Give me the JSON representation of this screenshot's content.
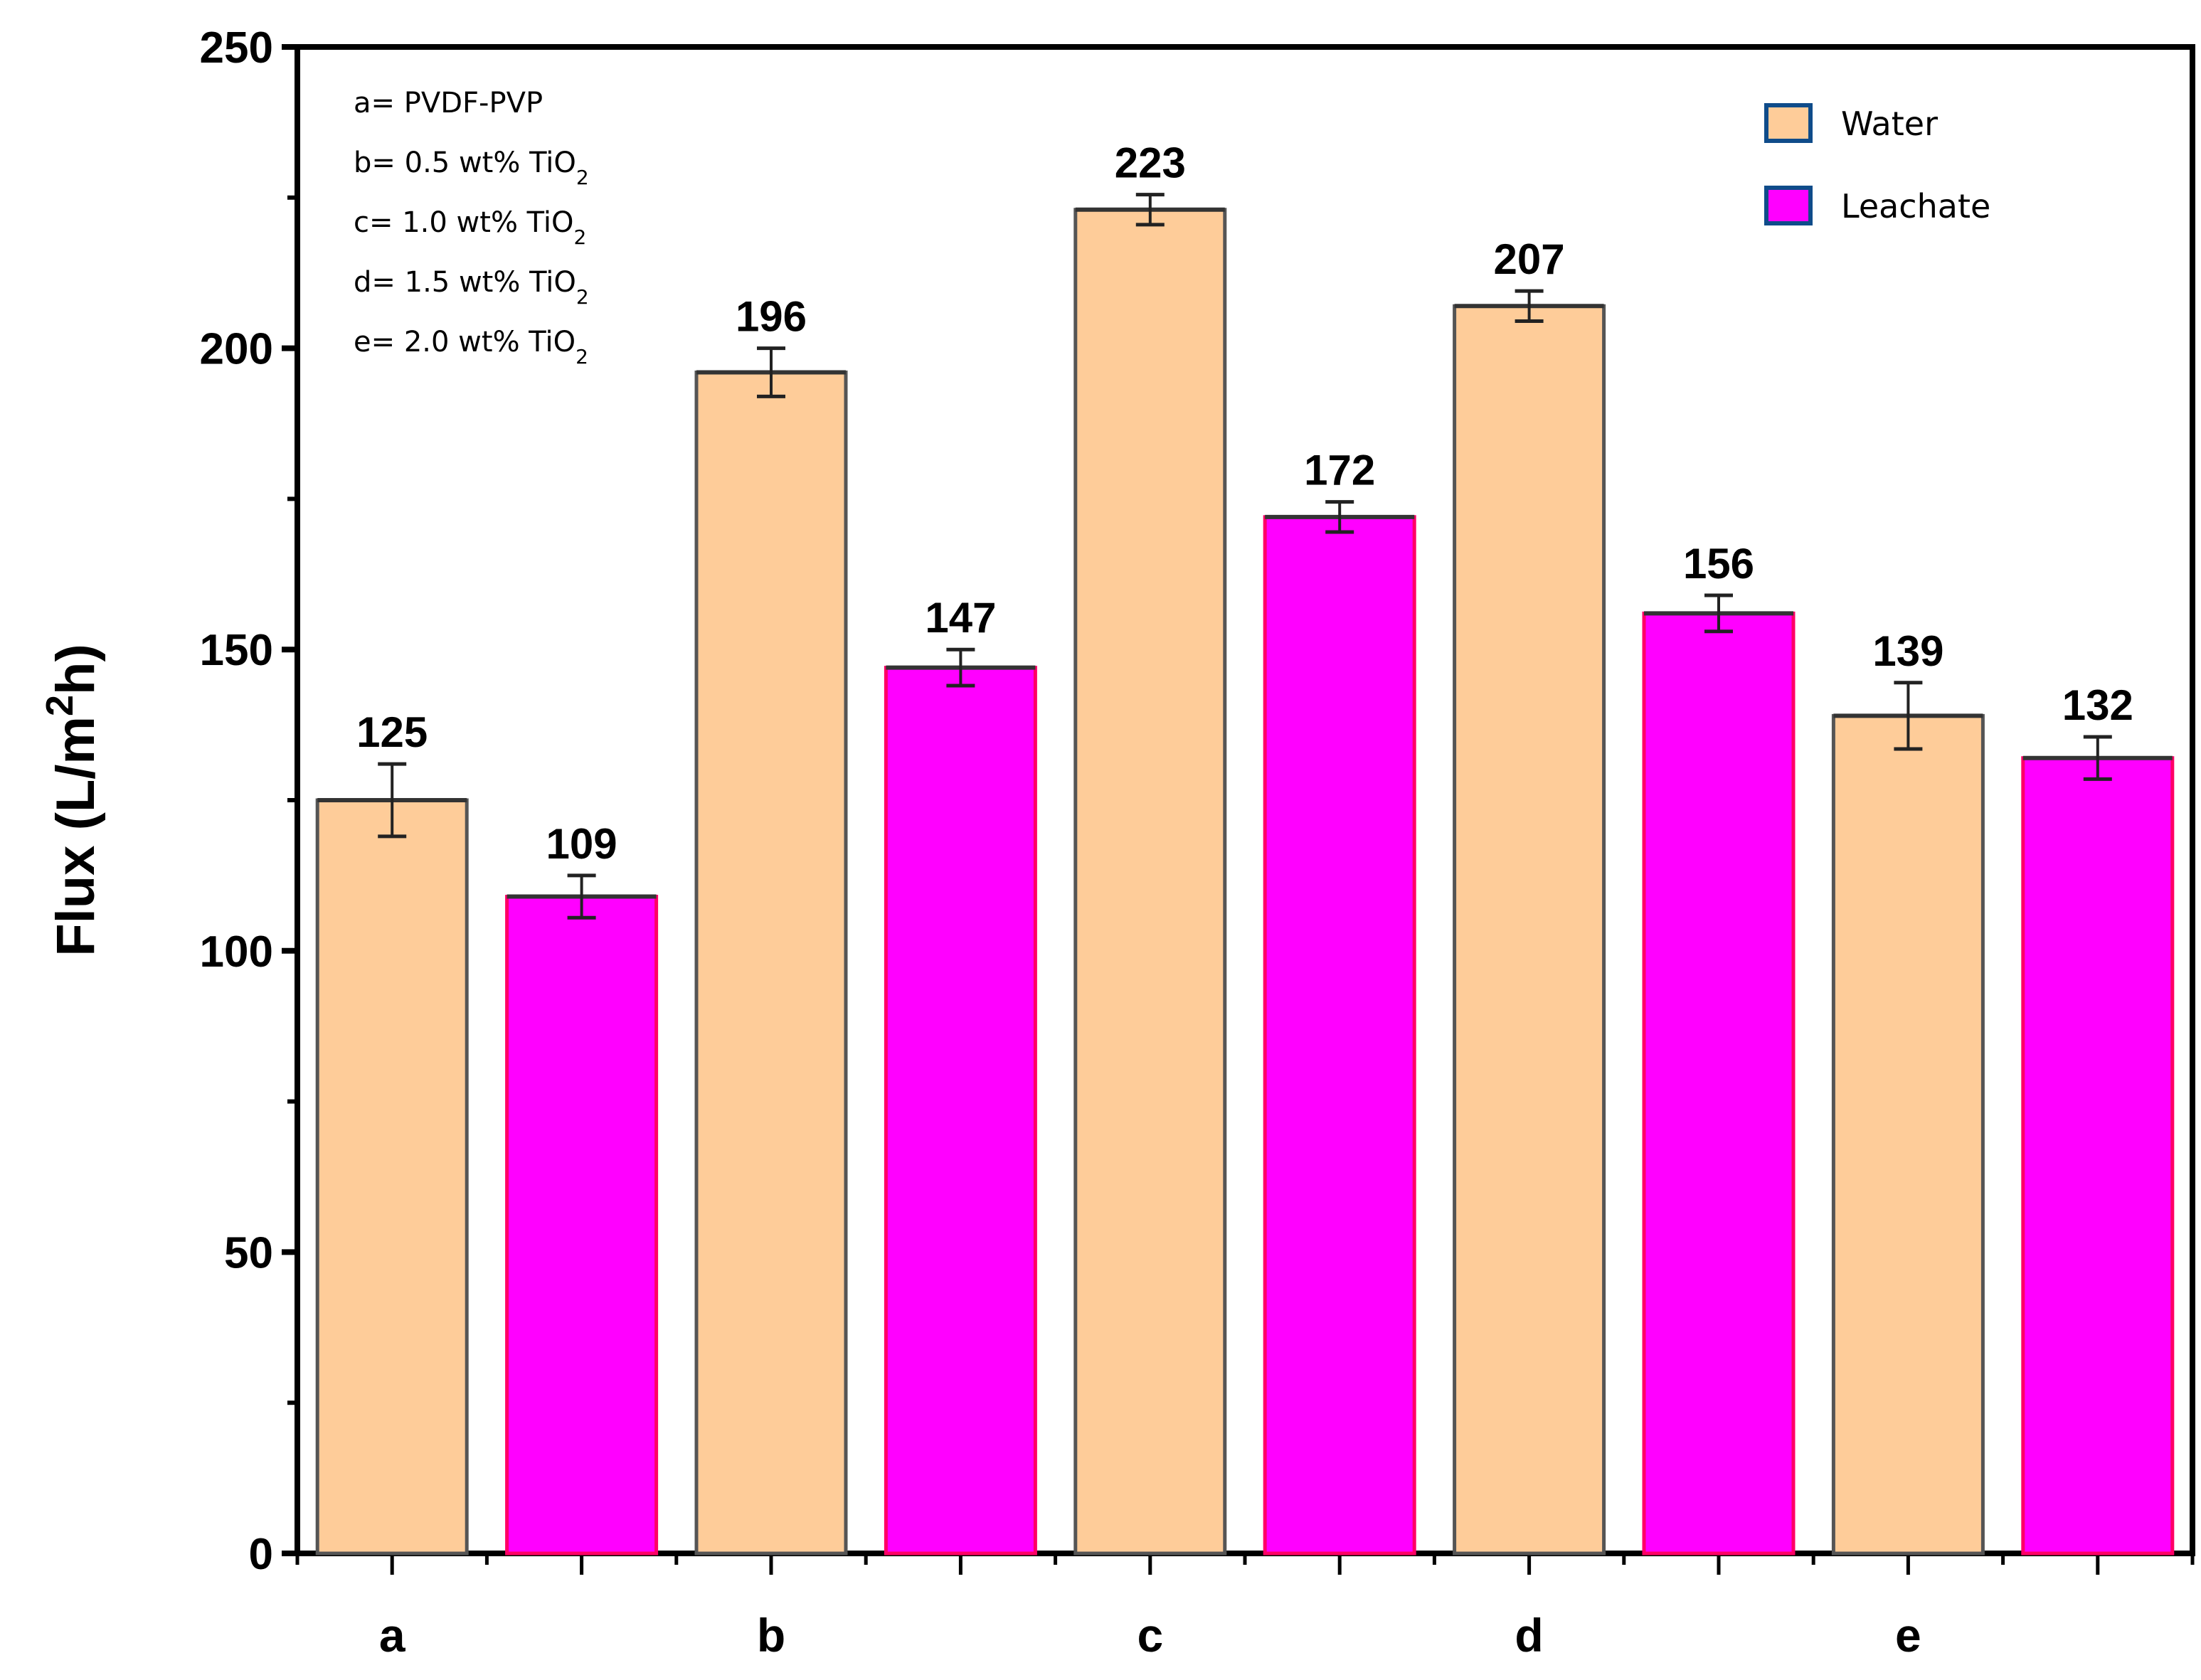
{
  "chart_data": {
    "type": "bar",
    "title": "",
    "xlabel": "",
    "ylabel": "Flux (L/m2h)",
    "ylabel_parts": {
      "prefix": "Flux  (L/m",
      "sup": "2",
      "suffix": "h)"
    },
    "ylim": [
      0,
      250
    ],
    "yticks": [
      0,
      50,
      100,
      150,
      200,
      250
    ],
    "minor_yticks": true,
    "grid": false,
    "legend_position": "top-right",
    "categories": [
      "a",
      "b",
      "c",
      "d",
      "e"
    ],
    "series": [
      {
        "name": "Water",
        "color": "#FECC99",
        "border": "#555555",
        "values": [
          125,
          196,
          223,
          207,
          139
        ],
        "errors": [
          6,
          4,
          2.5,
          2.5,
          5.5
        ]
      },
      {
        "name": "Leachate",
        "color": "#FF00FF",
        "border": "#FF0066",
        "values": [
          109,
          147,
          172,
          156,
          132
        ],
        "errors": [
          3.5,
          3,
          2.5,
          3,
          3.5
        ]
      }
    ],
    "annotations": [
      {
        "key": "a",
        "text": "a= PVDF-PVP",
        "sub": ""
      },
      {
        "key": "b",
        "text": "b= 0.5 wt% TiO",
        "sub": "2"
      },
      {
        "key": "c",
        "text": "c= 1.0 wt% TiO",
        "sub": "2"
      },
      {
        "key": "d",
        "text": "d= 1.5 wt% TiO",
        "sub": "2"
      },
      {
        "key": "e",
        "text": "e= 2.0 wt% TiO",
        "sub": "2"
      }
    ]
  },
  "legend": {
    "items": [
      {
        "label": "Water",
        "color": "#FECC99",
        "border": "#0F4C8A"
      },
      {
        "label": "Leachate",
        "color": "#FF00FF",
        "border": "#0F4C8A"
      }
    ]
  }
}
